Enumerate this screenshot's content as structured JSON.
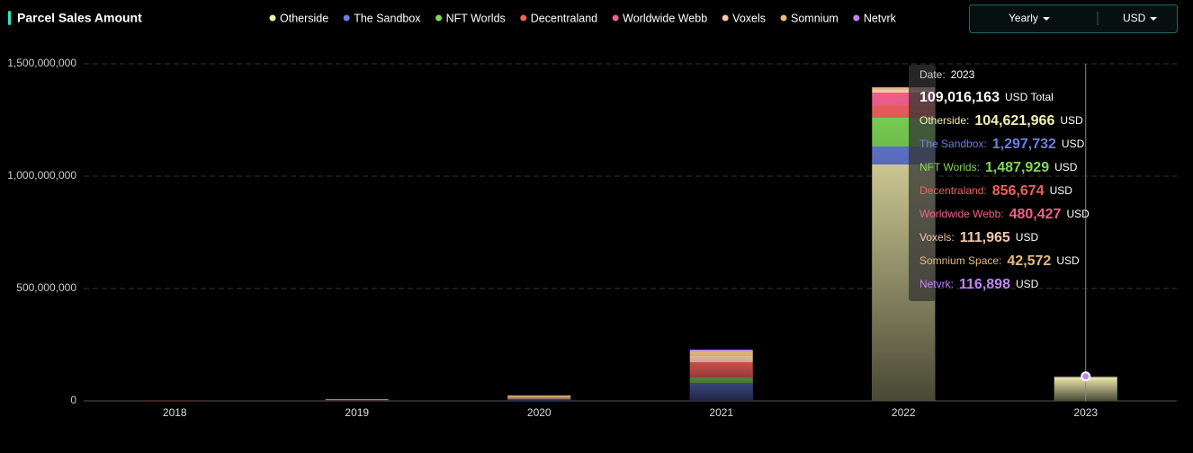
{
  "chart_data": {
    "type": "stacked_bar",
    "title": "Parcel Sales Amount",
    "categories": [
      "2018",
      "2019",
      "2020",
      "2021",
      "2022",
      "2023"
    ],
    "series": [
      {
        "name": "Otherside",
        "color": "#f4f0b0",
        "values": [
          0,
          0,
          0,
          0,
          1052000000,
          104621966
        ]
      },
      {
        "name": "The Sandbox",
        "color": "#6b80e0",
        "values": [
          500000,
          2000000,
          4000000,
          80000000,
          80000000,
          1297732
        ]
      },
      {
        "name": "NFT Worlds",
        "color": "#7fd957",
        "values": [
          0,
          0,
          0,
          24000000,
          128000000,
          1487929
        ]
      },
      {
        "name": "Decentraland",
        "color": "#f0605a",
        "values": [
          1500000,
          3000000,
          4000000,
          68000000,
          52000000,
          856674
        ]
      },
      {
        "name": "Worldwide Webb",
        "color": "#f0608c",
        "values": [
          0,
          0,
          0,
          0,
          60000000,
          480427
        ]
      },
      {
        "name": "Voxels",
        "color": "#f5c8ac",
        "values": [
          0,
          0,
          6000000,
          28000000,
          12000000,
          111965
        ]
      },
      {
        "name": "Somnium",
        "color": "#e9bb7c",
        "values": [
          0,
          3000000,
          10000000,
          20000000,
          8000000,
          42572
        ]
      },
      {
        "name": "Netvrk",
        "color": "#c184f2",
        "values": [
          0,
          0,
          0,
          8000000,
          4000000,
          116898
        ]
      }
    ],
    "ylim": [
      0,
      1500000000
    ],
    "yticks": [
      0,
      {
        "value": 500000000,
        "label": "500,000,000"
      },
      {
        "value": 1000000000,
        "label": "1,000,000,000"
      },
      {
        "value": 1500000000,
        "label": "1,500,000,000"
      }
    ],
    "grid": true,
    "controls": [
      "Yearly",
      "USD"
    ],
    "tooltip": {
      "date_label": "Date:",
      "date": "2023",
      "total": "109,016,163",
      "total_unit": "USD Total",
      "unit": "USD",
      "rows": [
        {
          "name": "Otherside:",
          "value": "104,621,966"
        },
        {
          "name": "The Sandbox:",
          "value": "1,297,732"
        },
        {
          "name": "NFT Worlds:",
          "value": "1,487,929"
        },
        {
          "name": "Decentraland:",
          "value": "856,674"
        },
        {
          "name": "Worldwide Webb:",
          "value": "480,427"
        },
        {
          "name": "Voxels:",
          "value": "111,965"
        },
        {
          "name": "Somnium Space:",
          "value": "42,572"
        },
        {
          "name": "Netvrk:",
          "value": "116,898"
        }
      ]
    }
  }
}
